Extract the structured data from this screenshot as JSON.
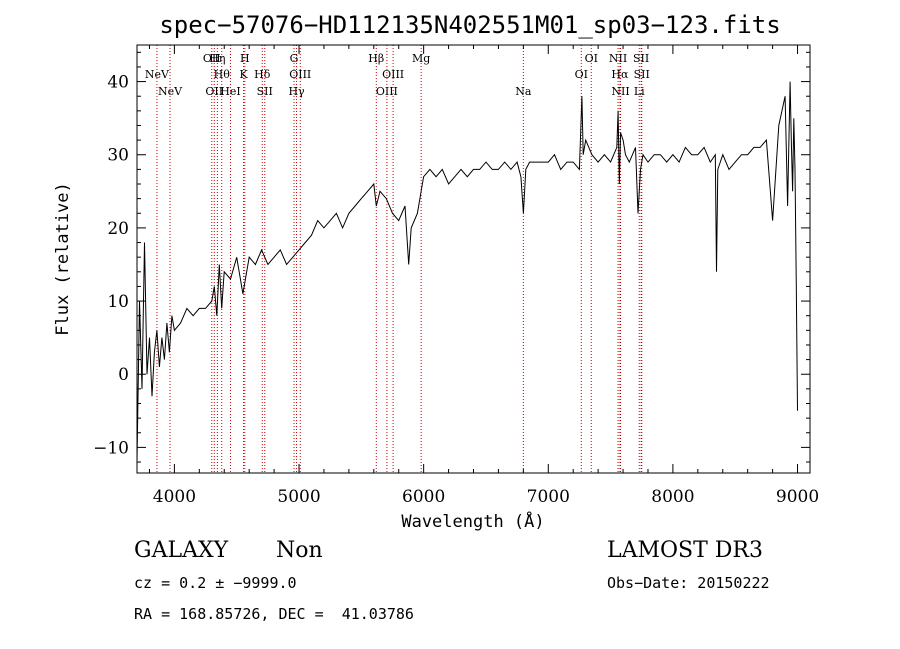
{
  "chart_data": {
    "type": "line",
    "title": "spec−57076−HD112135N402551M01_sp03−123.fits",
    "xlabel": "Wavelength (Å)",
    "ylabel": "Flux (relative)",
    "xlim": [
      3700,
      9100
    ],
    "ylim": [
      -13.5,
      45
    ],
    "x_ticks": [
      4000,
      5000,
      6000,
      7000,
      8000,
      9000
    ],
    "y_ticks": [
      -10,
      0,
      10,
      20,
      30,
      40
    ],
    "y_tick_labels": [
      "−10",
      "0",
      "10",
      "20",
      "30",
      "40"
    ],
    "grid": false,
    "series": [
      {
        "name": "spectrum",
        "x": [
          3700,
          3720,
          3740,
          3760,
          3780,
          3800,
          3820,
          3840,
          3860,
          3880,
          3900,
          3920,
          3940,
          3960,
          3980,
          4000,
          4050,
          4100,
          4150,
          4200,
          4250,
          4300,
          4320,
          4340,
          4360,
          4380,
          4400,
          4450,
          4500,
          4550,
          4600,
          4650,
          4700,
          4750,
          4800,
          4850,
          4900,
          4950,
          5000,
          5050,
          5100,
          5150,
          5200,
          5250,
          5300,
          5350,
          5400,
          5450,
          5500,
          5550,
          5600,
          5620,
          5650,
          5700,
          5750,
          5800,
          5850,
          5880,
          5900,
          5950,
          6000,
          6050,
          6100,
          6150,
          6200,
          6250,
          6300,
          6350,
          6400,
          6450,
          6500,
          6550,
          6600,
          6650,
          6700,
          6750,
          6780,
          6800,
          6820,
          6850,
          6900,
          6950,
          7000,
          7050,
          7100,
          7150,
          7200,
          7250,
          7270,
          7280,
          7300,
          7350,
          7400,
          7450,
          7500,
          7550,
          7560,
          7570,
          7580,
          7600,
          7620,
          7650,
          7700,
          7720,
          7740,
          7760,
          7800,
          7850,
          7900,
          7950,
          8000,
          8050,
          8100,
          8150,
          8200,
          8250,
          8300,
          8340,
          8350,
          8360,
          8400,
          8450,
          8500,
          8550,
          8600,
          8650,
          8700,
          8750,
          8800,
          8850,
          8900,
          8920,
          8940,
          8950,
          8960,
          8970,
          8980,
          8990,
          9000
        ],
        "y": [
          -12,
          10,
          -2,
          18,
          0,
          5,
          -3,
          3,
          6,
          1,
          5,
          2,
          7,
          3,
          8,
          6,
          7,
          9,
          8,
          9,
          9,
          10,
          12,
          8,
          15,
          9,
          14,
          13,
          16,
          11,
          16,
          15,
          17,
          15,
          16,
          17,
          15,
          16,
          17,
          18,
          19,
          21,
          20,
          21,
          22,
          20,
          22,
          23,
          24,
          25,
          26,
          23,
          25,
          24,
          22,
          21,
          23,
          15,
          20,
          22,
          27,
          28,
          27,
          28,
          26,
          27,
          28,
          27,
          28,
          28,
          29,
          28,
          28,
          29,
          28,
          29,
          27,
          22,
          28,
          29,
          29,
          29,
          29,
          30,
          28,
          29,
          29,
          28,
          38,
          30,
          32,
          30,
          29,
          30,
          29,
          31,
          36,
          26,
          33,
          32,
          30,
          29,
          31,
          22,
          28,
          30,
          29,
          30,
          30,
          29,
          30,
          29,
          31,
          30,
          30,
          31,
          29,
          30,
          14,
          28,
          30,
          28,
          29,
          30,
          30,
          31,
          31,
          32,
          21,
          34,
          38,
          23,
          40,
          32,
          25,
          35,
          28,
          12,
          -5
        ]
      }
    ],
    "spectral_lines": [
      {
        "label": "NeV",
        "w": 3860,
        "row": 1
      },
      {
        "label": "NeV",
        "w": 3965,
        "row": 2
      },
      {
        "label": "OII",
        "w": 4300,
        "row": 0
      },
      {
        "label": "OII",
        "w": 4320,
        "row": 2
      },
      {
        "label": "Hη",
        "w": 4345,
        "row": 0
      },
      {
        "label": "Hθ",
        "w": 4380,
        "row": 1
      },
      {
        "label": "HeI",
        "w": 4450,
        "row": 2
      },
      {
        "label": "H",
        "w": 4565,
        "row": 0
      },
      {
        "label": "K",
        "w": 4555,
        "row": 1
      },
      {
        "label": "Hδ",
        "w": 4705,
        "row": 1
      },
      {
        "label": "SII",
        "w": 4725,
        "row": 2
      },
      {
        "label": "G",
        "w": 4960,
        "row": 0
      },
      {
        "label": "OIII",
        "w": 5010,
        "row": 1
      },
      {
        "label": "Hγ",
        "w": 4980,
        "row": 2
      },
      {
        "label": "Hβ",
        "w": 5620,
        "row": 0
      },
      {
        "label": "OIII",
        "w": 5755,
        "row": 1
      },
      {
        "label": "OIII",
        "w": 5705,
        "row": 2
      },
      {
        "label": "Mg",
        "w": 5980,
        "row": 0
      },
      {
        "label": "Na",
        "w": 6800,
        "row": 2
      },
      {
        "label": "OI",
        "w": 7345,
        "row": 0
      },
      {
        "label": "OI",
        "w": 7265,
        "row": 1
      },
      {
        "label": "NII",
        "w": 7560,
        "row": 0
      },
      {
        "label": "Hα",
        "w": 7575,
        "row": 1
      },
      {
        "label": "NII",
        "w": 7580,
        "row": 2
      },
      {
        "label": "SII",
        "w": 7745,
        "row": 0
      },
      {
        "label": "SII",
        "w": 7750,
        "row": 1
      },
      {
        "label": "Li",
        "w": 7730,
        "row": 2
      }
    ],
    "spectral_line_positions": [
      3860,
      3965,
      4300,
      4320,
      4345,
      4380,
      4450,
      4555,
      4565,
      4705,
      4725,
      4960,
      4980,
      5010,
      5620,
      5705,
      5755,
      5980,
      6800,
      7265,
      7345,
      7560,
      7575,
      7580,
      7730,
      7745,
      7750
    ],
    "colors": {
      "spectrum": "#000000",
      "markers": "#cc0000",
      "axes": "#000000"
    }
  },
  "info": {
    "object_class": "GALAXY",
    "subclass": "Non",
    "survey": "LAMOST DR3",
    "cz": "cz = 0.2 ± −9999.0",
    "obs_date": "Obs−Date: 20150222",
    "coords": "RA = 168.85726, DEC =  41.03786"
  }
}
